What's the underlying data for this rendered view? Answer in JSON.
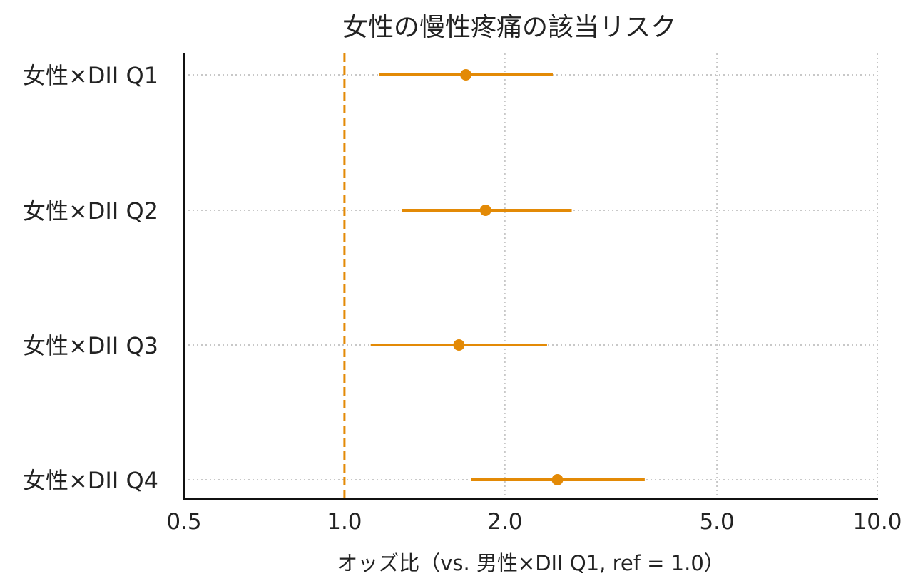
{
  "chart_data": {
    "type": "forest",
    "title": "女性の慢性疼痛の該当リスク",
    "xlabel": "オッズ比（vs. 男性×DII Q1, ref = 1.0）",
    "ylabel": "",
    "xscale": "log",
    "xlim": [
      0.5,
      10.0
    ],
    "xticks": [
      0.5,
      1.0,
      2.0,
      5.0,
      10.0
    ],
    "xtick_labels": [
      "0.5",
      "1.0",
      "2.0",
      "5.0",
      "10.0"
    ],
    "reference_line": 1.0,
    "grid": true,
    "color": "#e38a06",
    "categories": [
      "女性×DII Q1",
      "女性×DII Q2",
      "女性×DII Q3",
      "女性×DII Q4"
    ],
    "estimates": [
      1.69,
      1.84,
      1.64,
      2.51
    ],
    "lower": [
      1.16,
      1.28,
      1.12,
      1.73
    ],
    "upper": [
      2.46,
      2.67,
      2.4,
      3.66
    ]
  }
}
